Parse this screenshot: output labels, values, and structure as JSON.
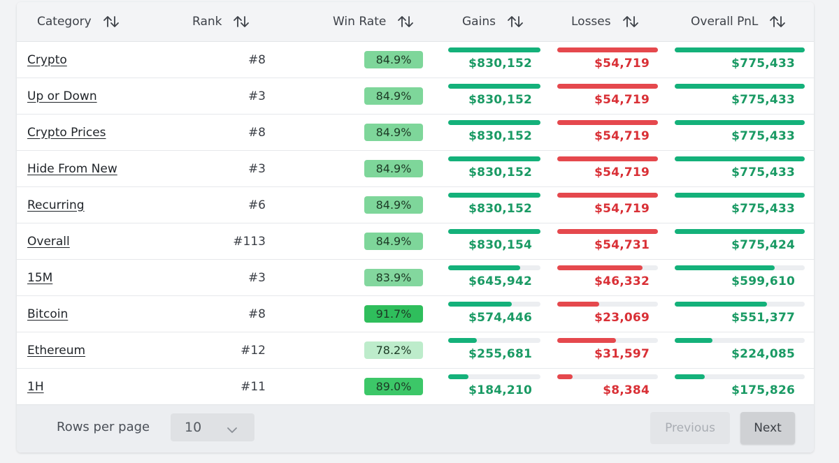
{
  "table": {
    "headers": {
      "category": "Category",
      "rank": "Rank",
      "win_rate": "Win Rate",
      "gains": "Gains",
      "losses": "Losses",
      "pnl": "Overall PnL"
    },
    "rows": [
      {
        "category": "Crypto",
        "rank": "#8",
        "win_rate": "84.9%",
        "badge_color": "#7ed69a",
        "gains": "$830,152",
        "gains_fill": 1.0,
        "losses": "$54,719",
        "losses_fill": 1.0,
        "pnl": "$775,433",
        "pnl_fill": 1.0
      },
      {
        "category": "Up or Down",
        "rank": "#3",
        "win_rate": "84.9%",
        "badge_color": "#7ed69a",
        "gains": "$830,152",
        "gains_fill": 1.0,
        "losses": "$54,719",
        "losses_fill": 1.0,
        "pnl": "$775,433",
        "pnl_fill": 1.0
      },
      {
        "category": "Crypto Prices",
        "rank": "#8",
        "win_rate": "84.9%",
        "badge_color": "#7ed69a",
        "gains": "$830,152",
        "gains_fill": 1.0,
        "losses": "$54,719",
        "losses_fill": 1.0,
        "pnl": "$775,433",
        "pnl_fill": 1.0
      },
      {
        "category": "Hide From New",
        "rank": "#3",
        "win_rate": "84.9%",
        "badge_color": "#7ed69a",
        "gains": "$830,152",
        "gains_fill": 1.0,
        "losses": "$54,719",
        "losses_fill": 1.0,
        "pnl": "$775,433",
        "pnl_fill": 1.0
      },
      {
        "category": "Recurring",
        "rank": "#6",
        "win_rate": "84.9%",
        "badge_color": "#7ed69a",
        "gains": "$830,152",
        "gains_fill": 1.0,
        "losses": "$54,719",
        "losses_fill": 1.0,
        "pnl": "$775,433",
        "pnl_fill": 1.0
      },
      {
        "category": "Overall",
        "rank": "#113",
        "win_rate": "84.9%",
        "badge_color": "#7ed69a",
        "gains": "$830,154",
        "gains_fill": 1.0,
        "losses": "$54,731",
        "losses_fill": 1.0,
        "pnl": "$775,424",
        "pnl_fill": 1.0
      },
      {
        "category": "15M",
        "rank": "#3",
        "win_rate": "83.9%",
        "badge_color": "#83d79e",
        "gains": "$645,942",
        "gains_fill": 0.78,
        "losses": "$46,332",
        "losses_fill": 0.85,
        "pnl": "$599,610",
        "pnl_fill": 0.77
      },
      {
        "category": "Bitcoin",
        "rank": "#8",
        "win_rate": "91.7%",
        "badge_color": "#2fbe5c",
        "gains": "$574,446",
        "gains_fill": 0.69,
        "losses": "$23,069",
        "losses_fill": 0.42,
        "pnl": "$551,377",
        "pnl_fill": 0.71
      },
      {
        "category": "Ethereum",
        "rank": "#12",
        "win_rate": "78.2%",
        "badge_color": "#bdeccb",
        "gains": "$255,681",
        "gains_fill": 0.31,
        "losses": "$31,597",
        "losses_fill": 0.58,
        "pnl": "$224,085",
        "pnl_fill": 0.29
      },
      {
        "category": "1H",
        "rank": "#11",
        "win_rate": "89.0%",
        "badge_color": "#3cc768",
        "gains": "$184,210",
        "gains_fill": 0.22,
        "losses": "$8,384",
        "losses_fill": 0.15,
        "pnl": "$175,826",
        "pnl_fill": 0.23
      }
    ]
  },
  "pagination": {
    "rows_per_page_label": "Rows per page",
    "rows_per_page_value": "10",
    "previous_label": "Previous",
    "next_label": "Next"
  },
  "colors": {
    "gain": "#14b17a",
    "gain_text": "#1a9a64",
    "loss": "#e5484d",
    "loss_text": "#d93036",
    "track": "#eceef1"
  },
  "icons": {
    "sort": "sort-arrows-icon",
    "dropdown": "chevron-down-icon"
  }
}
